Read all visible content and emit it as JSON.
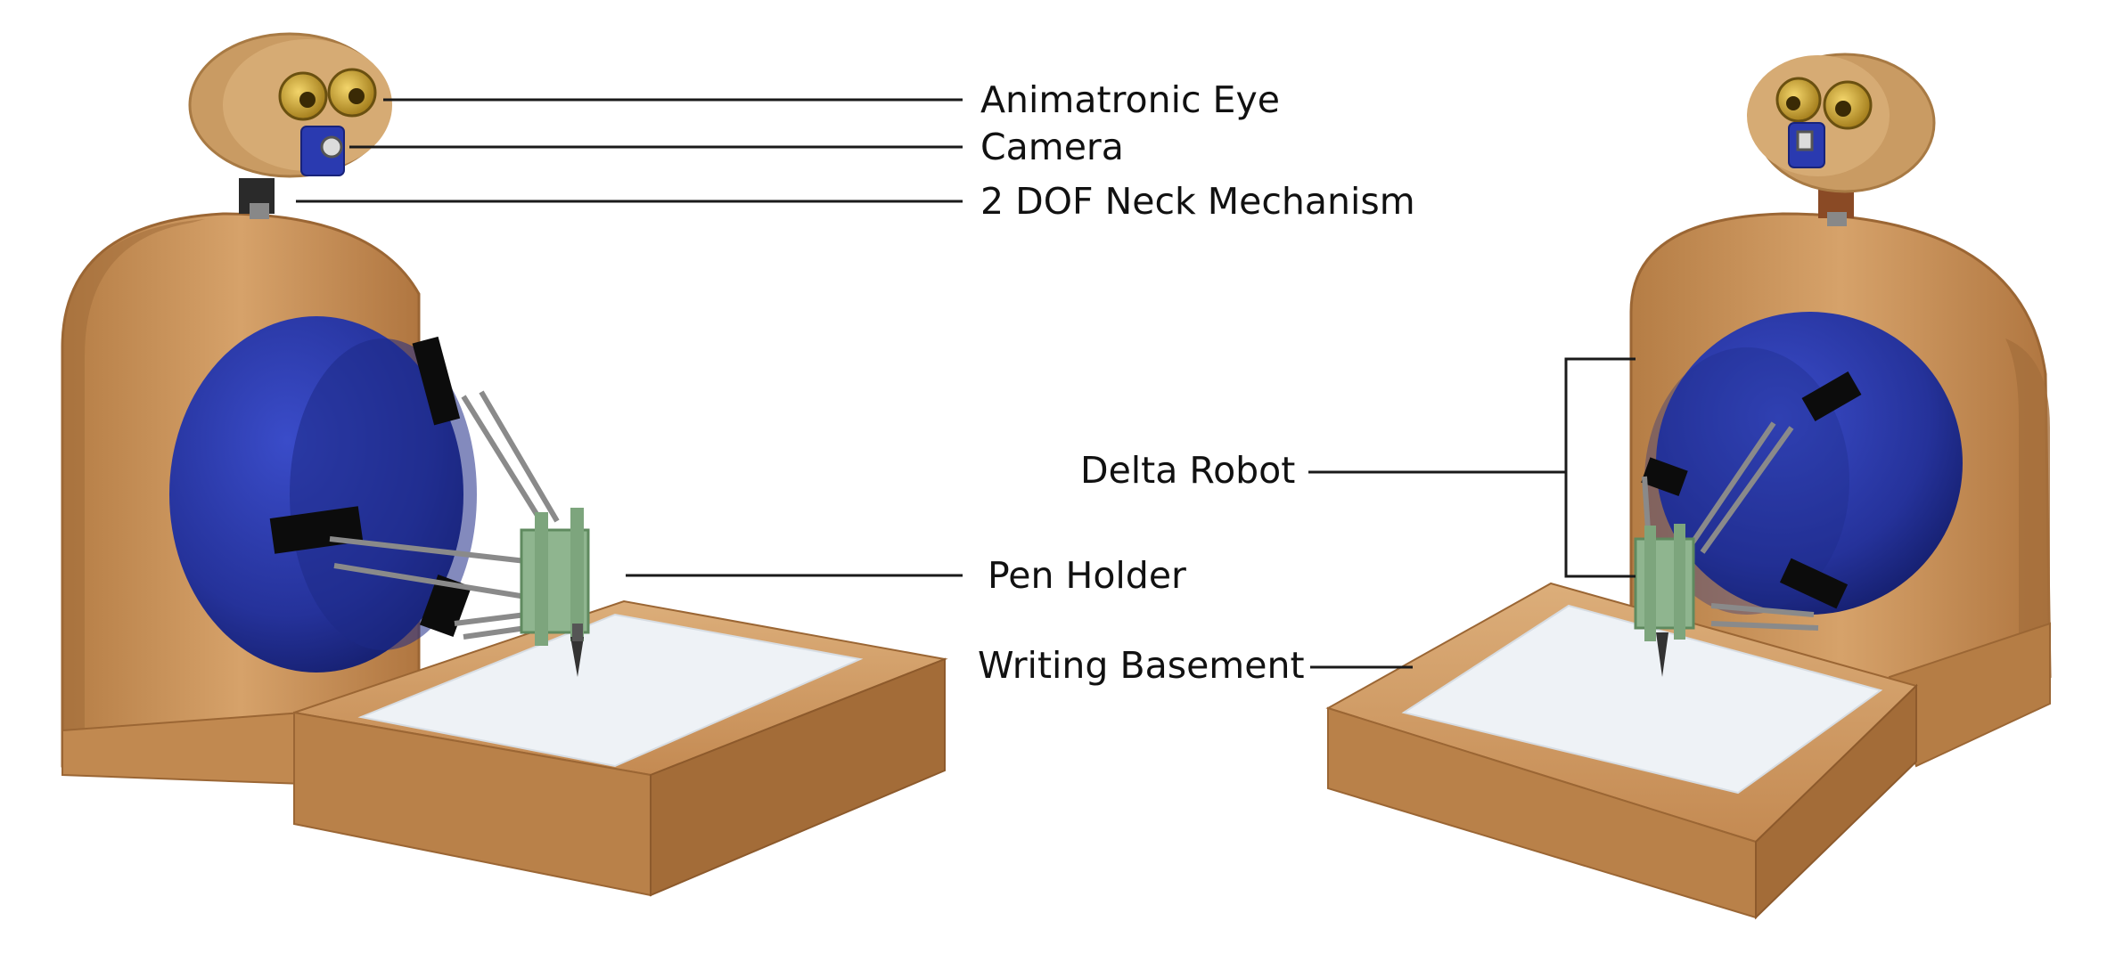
{
  "labels": {
    "animatronic_eye": "Animatronic Eye",
    "camera": "Camera",
    "neck": "2 DOF Neck Mechanism",
    "delta_robot": "Delta Robot",
    "pen_holder": "Pen Holder",
    "writing_basement": "Writing Basement"
  },
  "colors": {
    "wood": "#c9925a",
    "wood_dark": "#a9713c",
    "wood_light": "#dcae7a",
    "blue_sphere": "#2b3aa8",
    "blue_dark": "#18237a",
    "paper": "#eef2f6",
    "pen_holder_green": "#8fb58f",
    "leader_line": "#1a1a1a"
  }
}
